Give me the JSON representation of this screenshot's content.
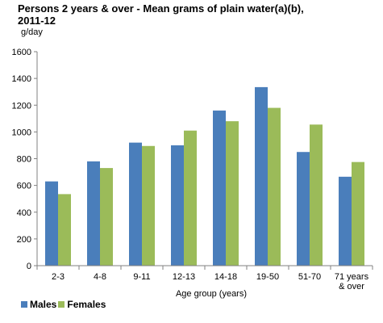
{
  "chart_data": {
    "type": "bar",
    "title_lines": [
      "Persons 2 years & over - Mean grams of plain water(a)(b),",
      "2011-12"
    ],
    "ylabel": "g/day",
    "xlabel": "Age group (years)",
    "categories": [
      [
        "2-3"
      ],
      [
        "4-8"
      ],
      [
        "9-11"
      ],
      [
        "12-13"
      ],
      [
        "14-18"
      ],
      [
        "19-50"
      ],
      [
        "51-70"
      ],
      [
        "71 years",
        "& over"
      ]
    ],
    "series": [
      {
        "name": "Males",
        "color": "#4a7ebb",
        "values": [
          630,
          780,
          920,
          900,
          1160,
          1335,
          850,
          665
        ]
      },
      {
        "name": "Females",
        "color": "#9bbb59",
        "values": [
          535,
          730,
          895,
          1010,
          1080,
          1180,
          1055,
          775
        ]
      }
    ],
    "ylim": [
      0,
      1600
    ],
    "yticks": [
      0,
      200,
      400,
      600,
      800,
      1000,
      1200,
      1400,
      1600
    ],
    "grid": false,
    "legend_position": "bottom-left"
  }
}
